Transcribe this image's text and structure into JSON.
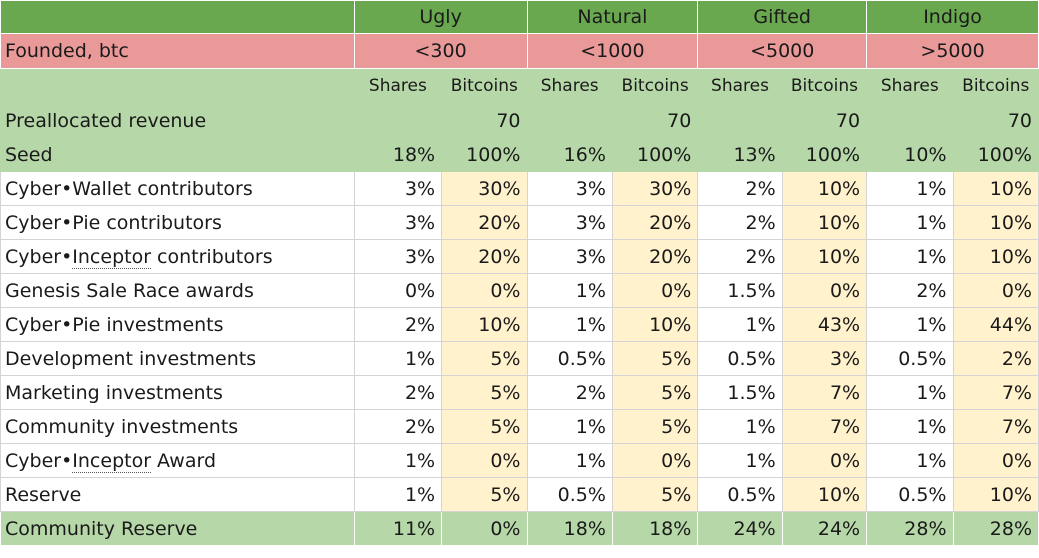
{
  "tiers": [
    {
      "name": "Ugly",
      "founded": "<300"
    },
    {
      "name": "Natural",
      "founded": "<1000"
    },
    {
      "name": "Gifted",
      "founded": "<5000"
    },
    {
      "name": "Indigo",
      "founded": ">5000"
    }
  ],
  "founded_label": "Founded, btc",
  "sub_headers": [
    "Shares",
    "Bitcoins"
  ],
  "prealloc": {
    "label": "Preallocated revenue",
    "values": [
      "",
      "70",
      "",
      "70",
      "",
      "70",
      "",
      "70"
    ]
  },
  "seed": {
    "label": "Seed",
    "values": [
      "18%",
      "100%",
      "16%",
      "100%",
      "13%",
      "100%",
      "10%",
      "100%"
    ]
  },
  "rows": [
    {
      "prefix": "Cyber•",
      "label_rest": "Wallet contributors",
      "values": [
        "3%",
        "30%",
        "3%",
        "30%",
        "2%",
        "10%",
        "1%",
        "10%"
      ]
    },
    {
      "prefix": "Cyber•",
      "label_rest": "Pie contributors",
      "values": [
        "3%",
        "20%",
        "3%",
        "20%",
        "2%",
        "10%",
        "1%",
        "10%"
      ]
    },
    {
      "prefix": "Cyber•",
      "underlined": "Inceptor",
      "label_rest": " contributors",
      "values": [
        "3%",
        "20%",
        "3%",
        "20%",
        "2%",
        "10%",
        "1%",
        "10%"
      ]
    },
    {
      "prefix": "",
      "label_rest": "Genesis Sale Race awards",
      "values": [
        "0%",
        "0%",
        "1%",
        "0%",
        "1.5%",
        "0%",
        "2%",
        "0%"
      ]
    },
    {
      "prefix": "Cyber•",
      "label_rest": "Pie investments",
      "values": [
        "2%",
        "10%",
        "1%",
        "10%",
        "1%",
        "43%",
        "1%",
        "44%"
      ]
    },
    {
      "prefix": "",
      "label_rest": "Development investments",
      "values": [
        "1%",
        "5%",
        "0.5%",
        "5%",
        "0.5%",
        "3%",
        "0.5%",
        "2%"
      ]
    },
    {
      "prefix": "",
      "label_rest": "Marketing investments",
      "values": [
        "2%",
        "5%",
        "2%",
        "5%",
        "1.5%",
        "7%",
        "1%",
        "7%"
      ]
    },
    {
      "prefix": "",
      "label_rest": "Community investments",
      "values": [
        "2%",
        "5%",
        "1%",
        "5%",
        "1%",
        "7%",
        "1%",
        "7%"
      ]
    },
    {
      "prefix": "Cyber•",
      "underlined": "Inceptor",
      "label_rest": " Award",
      "values": [
        "1%",
        "0%",
        "1%",
        "0%",
        "1%",
        "0%",
        "1%",
        "0%"
      ]
    },
    {
      "prefix": "",
      "label_rest": "Reserve",
      "values": [
        "1%",
        "5%",
        "0.5%",
        "5%",
        "0.5%",
        "10%",
        "0.5%",
        "10%"
      ]
    }
  ],
  "footer": {
    "label": "Community Reserve",
    "values": [
      "11%",
      "0%",
      "18%",
      "18%",
      "24%",
      "24%",
      "28%",
      "28%"
    ]
  }
}
